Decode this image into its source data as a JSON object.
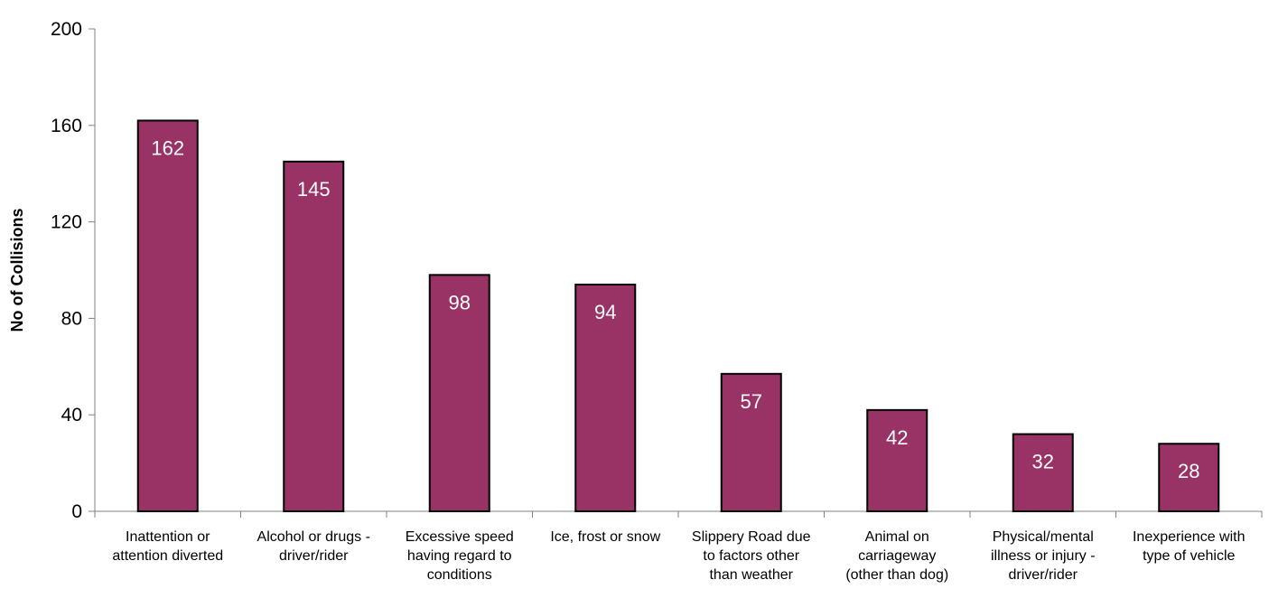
{
  "chart_data": {
    "type": "bar",
    "title": "",
    "xlabel": "",
    "ylabel": "No of Collisions",
    "ylim": [
      0,
      200
    ],
    "yticks": [
      0,
      40,
      80,
      120,
      160,
      200
    ],
    "grid": false,
    "legend": "none",
    "bar_color": "#993366",
    "bar_edge_color": "#000000",
    "data_label_color": "#ffffff",
    "categories": [
      [
        "Inattention or",
        "attention diverted"
      ],
      [
        "Alcohol or drugs -",
        "driver/rider"
      ],
      [
        "Excessive speed",
        "having regard to",
        "conditions"
      ],
      [
        "Ice, frost or snow"
      ],
      [
        "Slippery Road due",
        "to factors other",
        "than weather"
      ],
      [
        "Animal on",
        "carriageway",
        "(other than dog)"
      ],
      [
        "Physical/mental",
        "illness or injury -",
        "driver/rider"
      ],
      [
        "Inexperience with",
        "type of vehicle"
      ]
    ],
    "values": [
      162,
      145,
      98,
      94,
      57,
      42,
      32,
      28
    ]
  }
}
